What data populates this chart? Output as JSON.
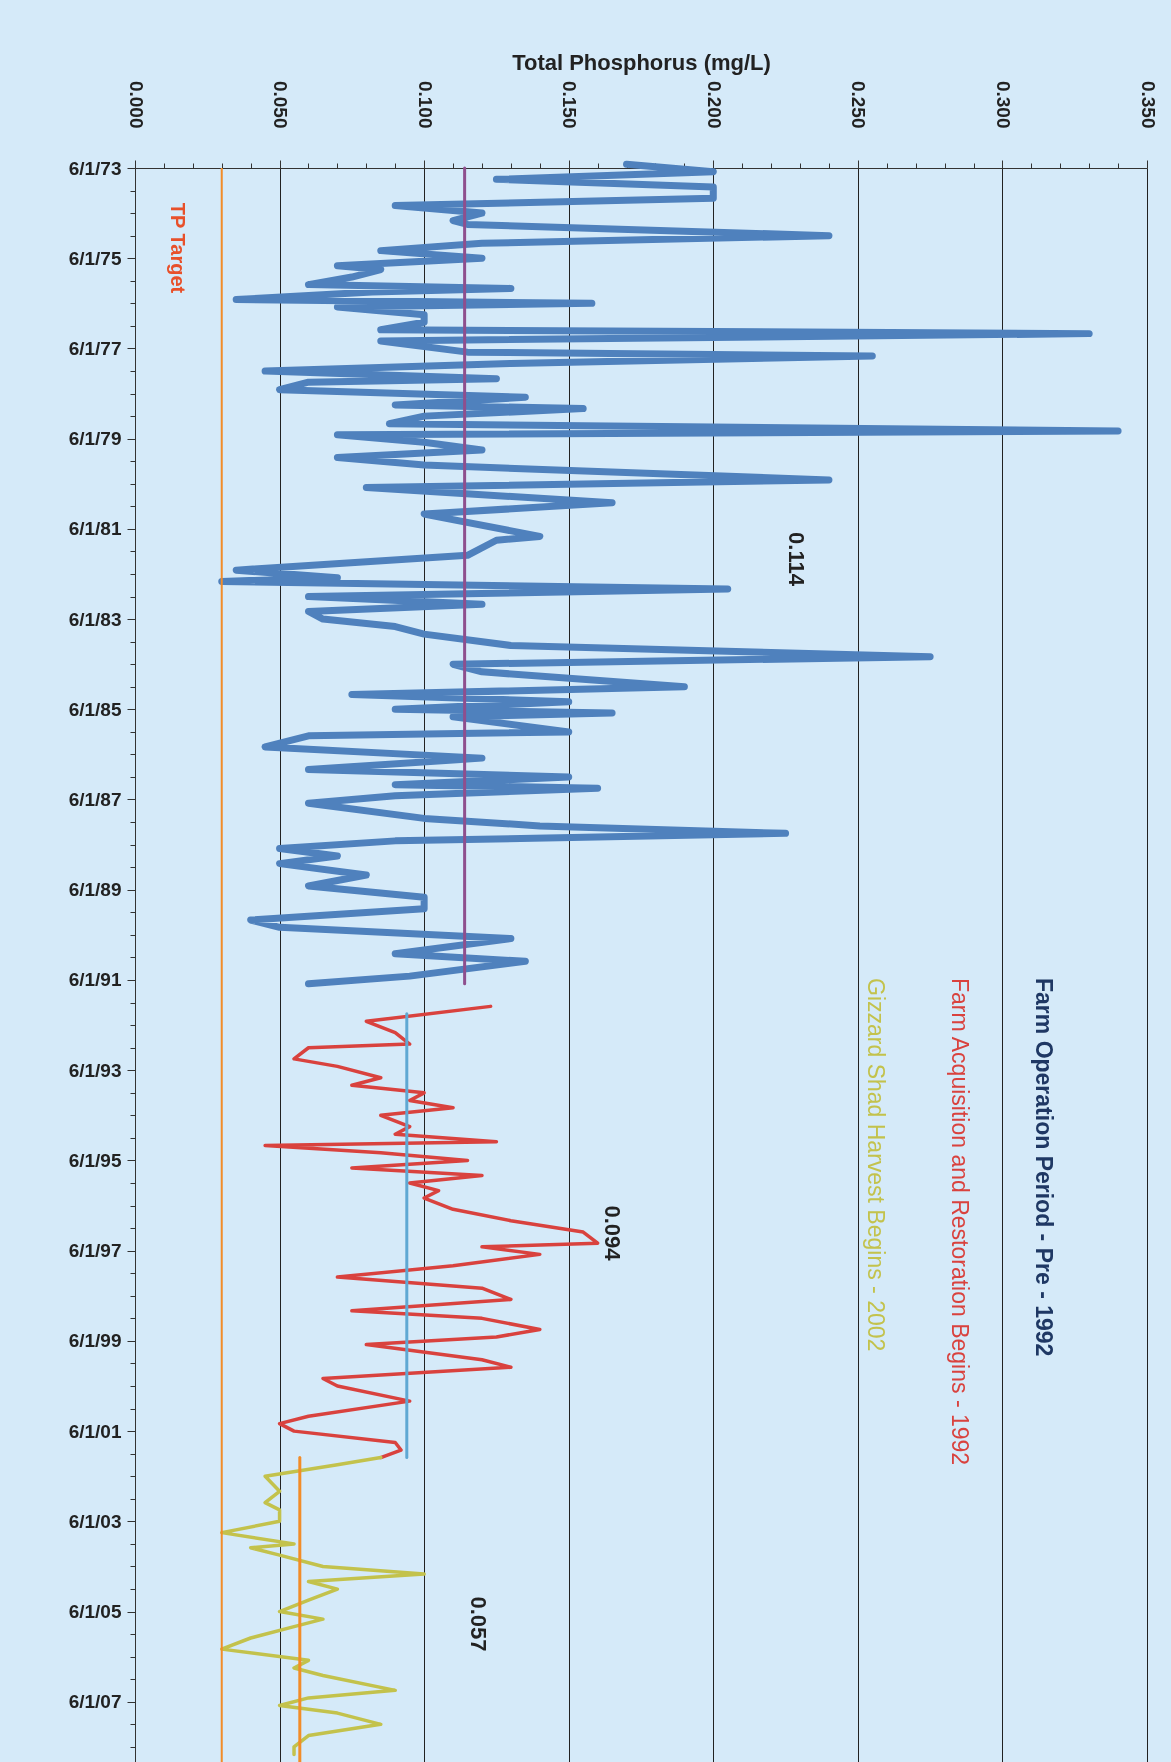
{
  "chart_data": {
    "type": "line",
    "orientation": "horizontal",
    "xlabel": "Total Phosphorus (mg/L)",
    "xlim": [
      0,
      0.35
    ],
    "xticks": [
      {
        "value": 0,
        "label": "0.000"
      },
      {
        "value": 0.01,
        "label": null
      },
      {
        "value": 0.02,
        "label": null
      },
      {
        "value": 0.03,
        "label": null
      },
      {
        "value": 0.04,
        "label": null
      },
      {
        "value": 0.05,
        "label": "0.050"
      },
      {
        "value": 0.06,
        "label": null
      },
      {
        "value": 0.07,
        "label": null
      },
      {
        "value": 0.08,
        "label": null
      },
      {
        "value": 0.09,
        "label": null
      },
      {
        "value": 0.1,
        "label": "0.100"
      },
      {
        "value": 0.11,
        "label": null
      },
      {
        "value": 0.12,
        "label": null
      },
      {
        "value": 0.13,
        "label": null
      },
      {
        "value": 0.14,
        "label": null
      },
      {
        "value": 0.15,
        "label": "0.150"
      },
      {
        "value": 0.16,
        "label": null
      },
      {
        "value": 0.17,
        "label": null
      },
      {
        "value": 0.18,
        "label": null
      },
      {
        "value": 0.19,
        "label": null
      },
      {
        "value": 0.2,
        "label": "0.200"
      },
      {
        "value": 0.21,
        "label": null
      },
      {
        "value": 0.22,
        "label": null
      },
      {
        "value": 0.23,
        "label": null
      },
      {
        "value": 0.24,
        "label": null
      },
      {
        "value": 0.25,
        "label": "0.250"
      },
      {
        "value": 0.26,
        "label": null
      },
      {
        "value": 0.27,
        "label": null
      },
      {
        "value": 0.28,
        "label": null
      },
      {
        "value": 0.29,
        "label": null
      },
      {
        "value": 0.3,
        "label": "0.300"
      },
      {
        "value": 0.31,
        "label": null
      },
      {
        "value": 0.32,
        "label": null
      },
      {
        "value": 0.33,
        "label": null
      },
      {
        "value": 0.34,
        "label": null
      },
      {
        "value": 0.35,
        "label": "0.350"
      }
    ],
    "ylim": [
      "2008-10-01",
      "1973-06-01"
    ],
    "yticks": [
      {
        "value": "1973-06-01",
        "label": "6/1/73"
      },
      {
        "value": "1973-12-01",
        "label": null
      },
      {
        "value": "1974-06-01",
        "label": null
      },
      {
        "value": "1974-12-01",
        "label": null
      },
      {
        "value": "1975-06-01",
        "label": "6/1/75"
      },
      {
        "value": "1975-12-01",
        "label": null
      },
      {
        "value": "1976-06-01",
        "label": null
      },
      {
        "value": "1976-12-01",
        "label": null
      },
      {
        "value": "1977-06-01",
        "label": "6/1/77"
      },
      {
        "value": "1977-12-01",
        "label": null
      },
      {
        "value": "1978-06-01",
        "label": null
      },
      {
        "value": "1978-12-01",
        "label": null
      },
      {
        "value": "1979-06-01",
        "label": "6/1/79"
      },
      {
        "value": "1979-12-01",
        "label": null
      },
      {
        "value": "1980-06-01",
        "label": null
      },
      {
        "value": "1980-12-01",
        "label": null
      },
      {
        "value": "1981-06-01",
        "label": "6/1/81"
      },
      {
        "value": "1981-12-01",
        "label": null
      },
      {
        "value": "1982-06-01",
        "label": null
      },
      {
        "value": "1982-12-01",
        "label": null
      },
      {
        "value": "1983-06-01",
        "label": "6/1/83"
      },
      {
        "value": "1983-12-01",
        "label": null
      },
      {
        "value": "1984-06-01",
        "label": null
      },
      {
        "value": "1984-12-01",
        "label": null
      },
      {
        "value": "1985-06-01",
        "label": "6/1/85"
      },
      {
        "value": "1985-12-01",
        "label": null
      },
      {
        "value": "1986-06-01",
        "label": null
      },
      {
        "value": "1986-12-01",
        "label": null
      },
      {
        "value": "1987-06-01",
        "label": "6/1/87"
      },
      {
        "value": "1987-12-01",
        "label": null
      },
      {
        "value": "1988-06-01",
        "label": null
      },
      {
        "value": "1988-12-01",
        "label": null
      },
      {
        "value": "1989-06-01",
        "label": "6/1/89"
      },
      {
        "value": "1989-12-01",
        "label": null
      },
      {
        "value": "1990-06-01",
        "label": null
      },
      {
        "value": "1990-12-01",
        "label": null
      },
      {
        "value": "1991-06-01",
        "label": "6/1/91"
      },
      {
        "value": "1991-12-01",
        "label": null
      },
      {
        "value": "1992-06-01",
        "label": null
      },
      {
        "value": "1992-12-01",
        "label": null
      },
      {
        "value": "1993-06-01",
        "label": "6/1/93"
      },
      {
        "value": "1993-12-01",
        "label": null
      },
      {
        "value": "1994-06-01",
        "label": null
      },
      {
        "value": "1994-12-01",
        "label": null
      },
      {
        "value": "1995-06-01",
        "label": "6/1/95"
      },
      {
        "value": "1995-12-01",
        "label": null
      },
      {
        "value": "1996-06-01",
        "label": null
      },
      {
        "value": "1996-12-01",
        "label": null
      },
      {
        "value": "1997-06-01",
        "label": "6/1/97"
      },
      {
        "value": "1997-12-01",
        "label": null
      },
      {
        "value": "1998-06-01",
        "label": null
      },
      {
        "value": "1998-12-01",
        "label": null
      },
      {
        "value": "1999-06-01",
        "label": "6/1/99"
      },
      {
        "value": "1999-12-01",
        "label": null
      },
      {
        "value": "2000-06-01",
        "label": null
      },
      {
        "value": "2000-12-01",
        "label": null
      },
      {
        "value": "2001-06-01",
        "label": "6/1/01"
      },
      {
        "value": "2001-12-01",
        "label": null
      },
      {
        "value": "2002-06-01",
        "label": null
      },
      {
        "value": "2002-12-01",
        "label": null
      },
      {
        "value": "2003-06-01",
        "label": "6/1/03"
      },
      {
        "value": "2003-12-01",
        "label": null
      },
      {
        "value": "2004-06-01",
        "label": null
      },
      {
        "value": "2004-12-01",
        "label": null
      },
      {
        "value": "2005-06-01",
        "label": "6/1/05"
      },
      {
        "value": "2005-12-01",
        "label": null
      },
      {
        "value": "2006-06-01",
        "label": null
      },
      {
        "value": "2006-12-01",
        "label": null
      },
      {
        "value": "2007-06-01",
        "label": "6/1/07"
      },
      {
        "value": "2007-12-01",
        "label": null
      },
      {
        "value": "2008-06-01",
        "label": null
      }
    ],
    "grid": "x",
    "legend": "right",
    "series": [
      {
        "name": "Farm Operation Period  - Pre - 1992",
        "color": "#4f81bd",
        "x": [
          "1973-05",
          "1973-07",
          "1973-09",
          "1973-11",
          "1974-02",
          "1974-04",
          "1974-06",
          "1974-08",
          "1974-09",
          "1974-12",
          "1975-02",
          "1975-04",
          "1975-06",
          "1975-08",
          "1975-09",
          "1975-11",
          "1976-01",
          "1976-02",
          "1976-03",
          "1976-05",
          "1976-06",
          "1976-07",
          "1976-09",
          "1976-11",
          "1977-01",
          "1977-02",
          "1977-04",
          "1977-07",
          "1977-08",
          "1977-10",
          "1977-12",
          "1978-02",
          "1978-03",
          "1978-05",
          "1978-07",
          "1978-09",
          "1978-10",
          "1978-12",
          "1979-02",
          "1979-04",
          "1979-05",
          "1979-07",
          "1979-09",
          "1979-11",
          "1980-01",
          "1980-05",
          "1980-07",
          "1980-11",
          "1981-02",
          "1981-08",
          "1981-09",
          "1982-01",
          "1982-05",
          "1982-07",
          "1982-08",
          "1982-10",
          "1982-12",
          "1983-02",
          "1983-04",
          "1983-06",
          "1983-08",
          "1983-10",
          "1984-01",
          "1984-04",
          "1984-06",
          "1984-08",
          "1984-12",
          "1985-02",
          "1985-04",
          "1985-06",
          "1985-07",
          "1985-08",
          "1985-12",
          "1986-01",
          "1986-04",
          "1986-07",
          "1986-10",
          "1986-12",
          "1987-02",
          "1987-03",
          "1987-05",
          "1987-07",
          "1987-11",
          "1988-01",
          "1988-03",
          "1988-05",
          "1988-07",
          "1988-09",
          "1988-11",
          "1989-02",
          "1989-05",
          "1989-08",
          "1989-11",
          "1990-02",
          "1990-04",
          "1990-07",
          "1990-11",
          "1991-01",
          "1991-05",
          "1991-07"
        ],
        "values": [
          0.17,
          0.2,
          0.125,
          0.2,
          0.2,
          0.09,
          0.12,
          0.11,
          0.115,
          0.24,
          0.12,
          0.085,
          0.12,
          0.07,
          0.085,
          0.075,
          0.06,
          0.13,
          0.082,
          0.035,
          0.158,
          0.07,
          0.1,
          0.1,
          0.085,
          0.33,
          0.085,
          0.115,
          0.255,
          0.13,
          0.045,
          0.125,
          0.06,
          0.05,
          0.135,
          0.09,
          0.155,
          0.1,
          0.088,
          0.34,
          0.07,
          0.1,
          0.12,
          0.07,
          0.1,
          0.24,
          0.08,
          0.165,
          0.1,
          0.14,
          0.125,
          0.115,
          0.035,
          0.07,
          0.03,
          0.205,
          0.06,
          0.12,
          0.06,
          0.065,
          0.09,
          0.1,
          0.13,
          0.275,
          0.11,
          0.12,
          0.19,
          0.075,
          0.15,
          0.09,
          0.165,
          0.11,
          0.15,
          0.06,
          0.045,
          0.12,
          0.06,
          0.15,
          0.09,
          0.16,
          0.09,
          0.06,
          0.1,
          0.14,
          0.225,
          0.09,
          0.05,
          0.07,
          0.05,
          0.08,
          0.06,
          0.1,
          0.1,
          0.04,
          0.05,
          0.13,
          0.09,
          0.135,
          0.095,
          0.06
        ]
      },
      {
        "name": "Farm Acquisition and  Restoration  Begins -  1992",
        "color": "#d9423e",
        "x": [
          "1992-01",
          "1992-05",
          "1992-08",
          "1992-11",
          "1992-12",
          "1993-03",
          "1993-05",
          "1993-08",
          "1993-10",
          "1993-12",
          "1994-02",
          "1994-04",
          "1994-06",
          "1994-09",
          "1994-11",
          "1995-01",
          "1995-02",
          "1995-04",
          "1995-06",
          "1995-08",
          "1995-10",
          "1995-12",
          "1996-02",
          "1996-04",
          "1996-07",
          "1996-10",
          "1997-01",
          "1997-04",
          "1997-05",
          "1997-07",
          "1997-10",
          "1998-01",
          "1998-04",
          "1998-07",
          "1998-10",
          "1998-12",
          "1999-03",
          "1999-05",
          "1999-07",
          "1999-11",
          "2000-01",
          "2000-04",
          "2000-06",
          "2000-10",
          "2001-02",
          "2001-04",
          "2001-06",
          "2001-09",
          "2001-11",
          "2002-01"
        ],
        "values": [
          0.123,
          0.08,
          0.09,
          0.095,
          0.06,
          0.055,
          0.07,
          0.085,
          0.075,
          0.1,
          0.095,
          0.11,
          0.085,
          0.095,
          0.09,
          0.125,
          0.045,
          0.085,
          0.115,
          0.075,
          0.12,
          0.095,
          0.105,
          0.1,
          0.11,
          0.13,
          0.155,
          0.16,
          0.12,
          0.14,
          0.11,
          0.07,
          0.12,
          0.13,
          0.075,
          0.12,
          0.14,
          0.125,
          0.08,
          0.12,
          0.13,
          0.065,
          0.07,
          0.095,
          0.06,
          0.05,
          0.055,
          0.09,
          0.092,
          0.085
        ]
      },
      {
        "name": "Gizzard Shad Harvest Begins - 2002",
        "color": "#c3c24c",
        "x": [
          "2002-01",
          "2002-03",
          "2002-06",
          "2002-10",
          "2003-01",
          "2003-03",
          "2003-06",
          "2003-09",
          "2003-12",
          "2004-01",
          "2004-03",
          "2004-06",
          "2004-08",
          "2004-10",
          "2004-12",
          "2005-03",
          "2005-06",
          "2005-08",
          "2005-10",
          "2006-01",
          "2006-04",
          "2006-07",
          "2006-09",
          "2006-11",
          "2007-03",
          "2007-05",
          "2007-07",
          "2007-09",
          "2007-12",
          "2008-03",
          "2008-06",
          "2008-08"
        ],
        "values": [
          0.085,
          0.07,
          0.045,
          0.05,
          0.045,
          0.05,
          0.05,
          0.03,
          0.055,
          0.04,
          0.05,
          0.065,
          0.1,
          0.06,
          0.07,
          0.06,
          0.05,
          0.065,
          0.055,
          0.04,
          0.03,
          0.06,
          0.055,
          0.065,
          0.09,
          0.06,
          0.05,
          0.07,
          0.085,
          0.06,
          0.055,
          0.055
        ]
      },
      {
        "color": "#8e4f8e",
        "x": [
          "1973-06",
          "1991-07"
        ],
        "values": [
          0.114,
          0.114
        ]
      },
      {
        "color": "#5fa8d3",
        "x": [
          "1992-03",
          "2002-01"
        ],
        "values": [
          0.094,
          0.094
        ]
      },
      {
        "color": "#f28c28",
        "x": [
          "2002-01",
          "2008-10"
        ],
        "values": [
          0.057,
          0.057
        ]
      }
    ],
    "ref_lines": [
      {
        "axis": "x",
        "value": 0.03,
        "label": "TP Target",
        "color": "#f28c28"
      }
    ],
    "annotations": [
      "0.114",
      "0.094",
      "0.057"
    ]
  }
}
